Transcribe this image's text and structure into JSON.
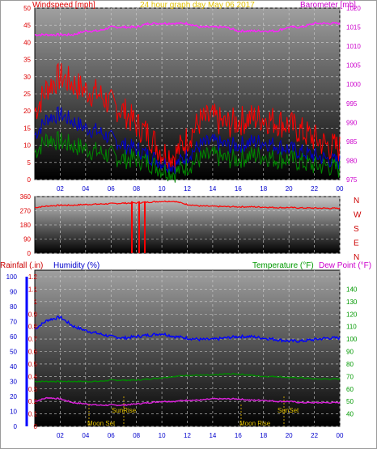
{
  "chart_data": [
    {
      "type": "line",
      "title": "24 hour graph day   May 06 2017",
      "ylabel": "Windspeed [mph]",
      "y2label": "Barometer [mb]",
      "ylim": [
        0,
        50
      ],
      "y2lim": [
        975,
        1020
      ],
      "x_ticks": [
        "02",
        "04",
        "06",
        "08",
        "10",
        "12",
        "14",
        "16",
        "18",
        "20",
        "22",
        "00"
      ],
      "y_ticks": [
        0,
        5,
        10,
        15,
        20,
        25,
        30,
        35,
        40,
        45,
        50
      ],
      "y2_ticks": [
        975,
        980,
        985,
        990,
        995,
        1000,
        1005,
        1010,
        1015,
        1020
      ],
      "series": [
        {
          "color": "#ff0000",
          "values": [
            20,
            27,
            30,
            28,
            26,
            25,
            22,
            20,
            16,
            13,
            8,
            7,
            12,
            17,
            18,
            16,
            17,
            18,
            18,
            17,
            16,
            14,
            12,
            10,
            9
          ]
        },
        {
          "color": "#0000cc",
          "values": [
            13,
            18,
            19,
            17,
            15,
            14,
            12,
            10,
            9,
            7,
            5,
            4,
            7,
            10,
            11,
            10,
            10,
            11,
            11,
            10,
            9,
            8,
            7,
            6,
            5
          ]
        },
        {
          "color": "#008800",
          "values": [
            8,
            12,
            11,
            10,
            9,
            8,
            7,
            6,
            6,
            5,
            3,
            2,
            4,
            6,
            7,
            6,
            6,
            7,
            7,
            6,
            6,
            5,
            4,
            4,
            3
          ]
        },
        {
          "color": "#ff22ff",
          "axis": "right",
          "values": [
            1013,
            1013,
            1013,
            1013,
            1014,
            1014,
            1015,
            1015,
            1015,
            1016,
            1016,
            1016,
            1016,
            1015,
            1015,
            1015,
            1014,
            1014,
            1014,
            1014,
            1015,
            1015,
            1016,
            1016,
            1016
          ]
        }
      ]
    },
    {
      "type": "line",
      "ylim": [
        0,
        360
      ],
      "y_ticks": [
        0,
        90,
        180,
        270,
        360
      ],
      "y2_ticks": [
        "N",
        "W",
        "S",
        "E",
        "N"
      ],
      "series": [
        {
          "color": "#ff0000",
          "values": [
            290,
            300,
            305,
            305,
            310,
            312,
            315,
            318,
            320,
            325,
            330,
            330,
            310,
            300,
            298,
            296,
            295,
            295,
            293,
            290,
            290,
            288,
            287,
            286,
            285
          ]
        }
      ]
    },
    {
      "type": "line",
      "ylabel": "Rainfall (.in)",
      "ylabel2": "Humidity (%)",
      "y2label": "Temperature (°F)",
      "y2label2": "Dew Point (°F)",
      "ylim_rain": [
        0,
        1.2
      ],
      "ylim_humidity": [
        0,
        100
      ],
      "y2lim": [
        30,
        150
      ],
      "y_rain_ticks": [
        "0",
        "0.1",
        "0.2",
        "0.3",
        "0.4",
        "0.5",
        "0.6",
        "0.7",
        "0.8",
        "0.9",
        "1",
        "1.1",
        "1.2"
      ],
      "y_hum_ticks": [
        0,
        10,
        20,
        30,
        40,
        50,
        60,
        70,
        80,
        90,
        100
      ],
      "y2_ticks": [
        40,
        50,
        60,
        70,
        80,
        90,
        100,
        110,
        120,
        130,
        140
      ],
      "annotations": {
        "sunrise": "SunRise",
        "sunset": "SunSet",
        "moonset": "Moon Set",
        "moonrise": "Moon Rise"
      },
      "series": [
        {
          "color": "#0000ff",
          "values": [
            65,
            71,
            73,
            67,
            64,
            62,
            60,
            59,
            60,
            61,
            62,
            60,
            59,
            58,
            58,
            59,
            60,
            60,
            59,
            58,
            57,
            57,
            58,
            59,
            59
          ]
        },
        {
          "color": "#008800",
          "axis": "right",
          "values": [
            66,
            66,
            66,
            66,
            66,
            66,
            67,
            67,
            67,
            68,
            69,
            70,
            71,
            71,
            71,
            72,
            72,
            71,
            70,
            70,
            69,
            69,
            68,
            68,
            68
          ]
        },
        {
          "color": "#dd22dd",
          "axis": "right",
          "values": [
            50,
            53,
            52,
            49,
            48,
            47,
            47,
            47,
            48,
            49,
            50,
            50,
            51,
            51,
            52,
            52,
            52,
            51,
            51,
            50,
            50,
            49,
            49,
            49,
            49
          ]
        }
      ]
    }
  ]
}
